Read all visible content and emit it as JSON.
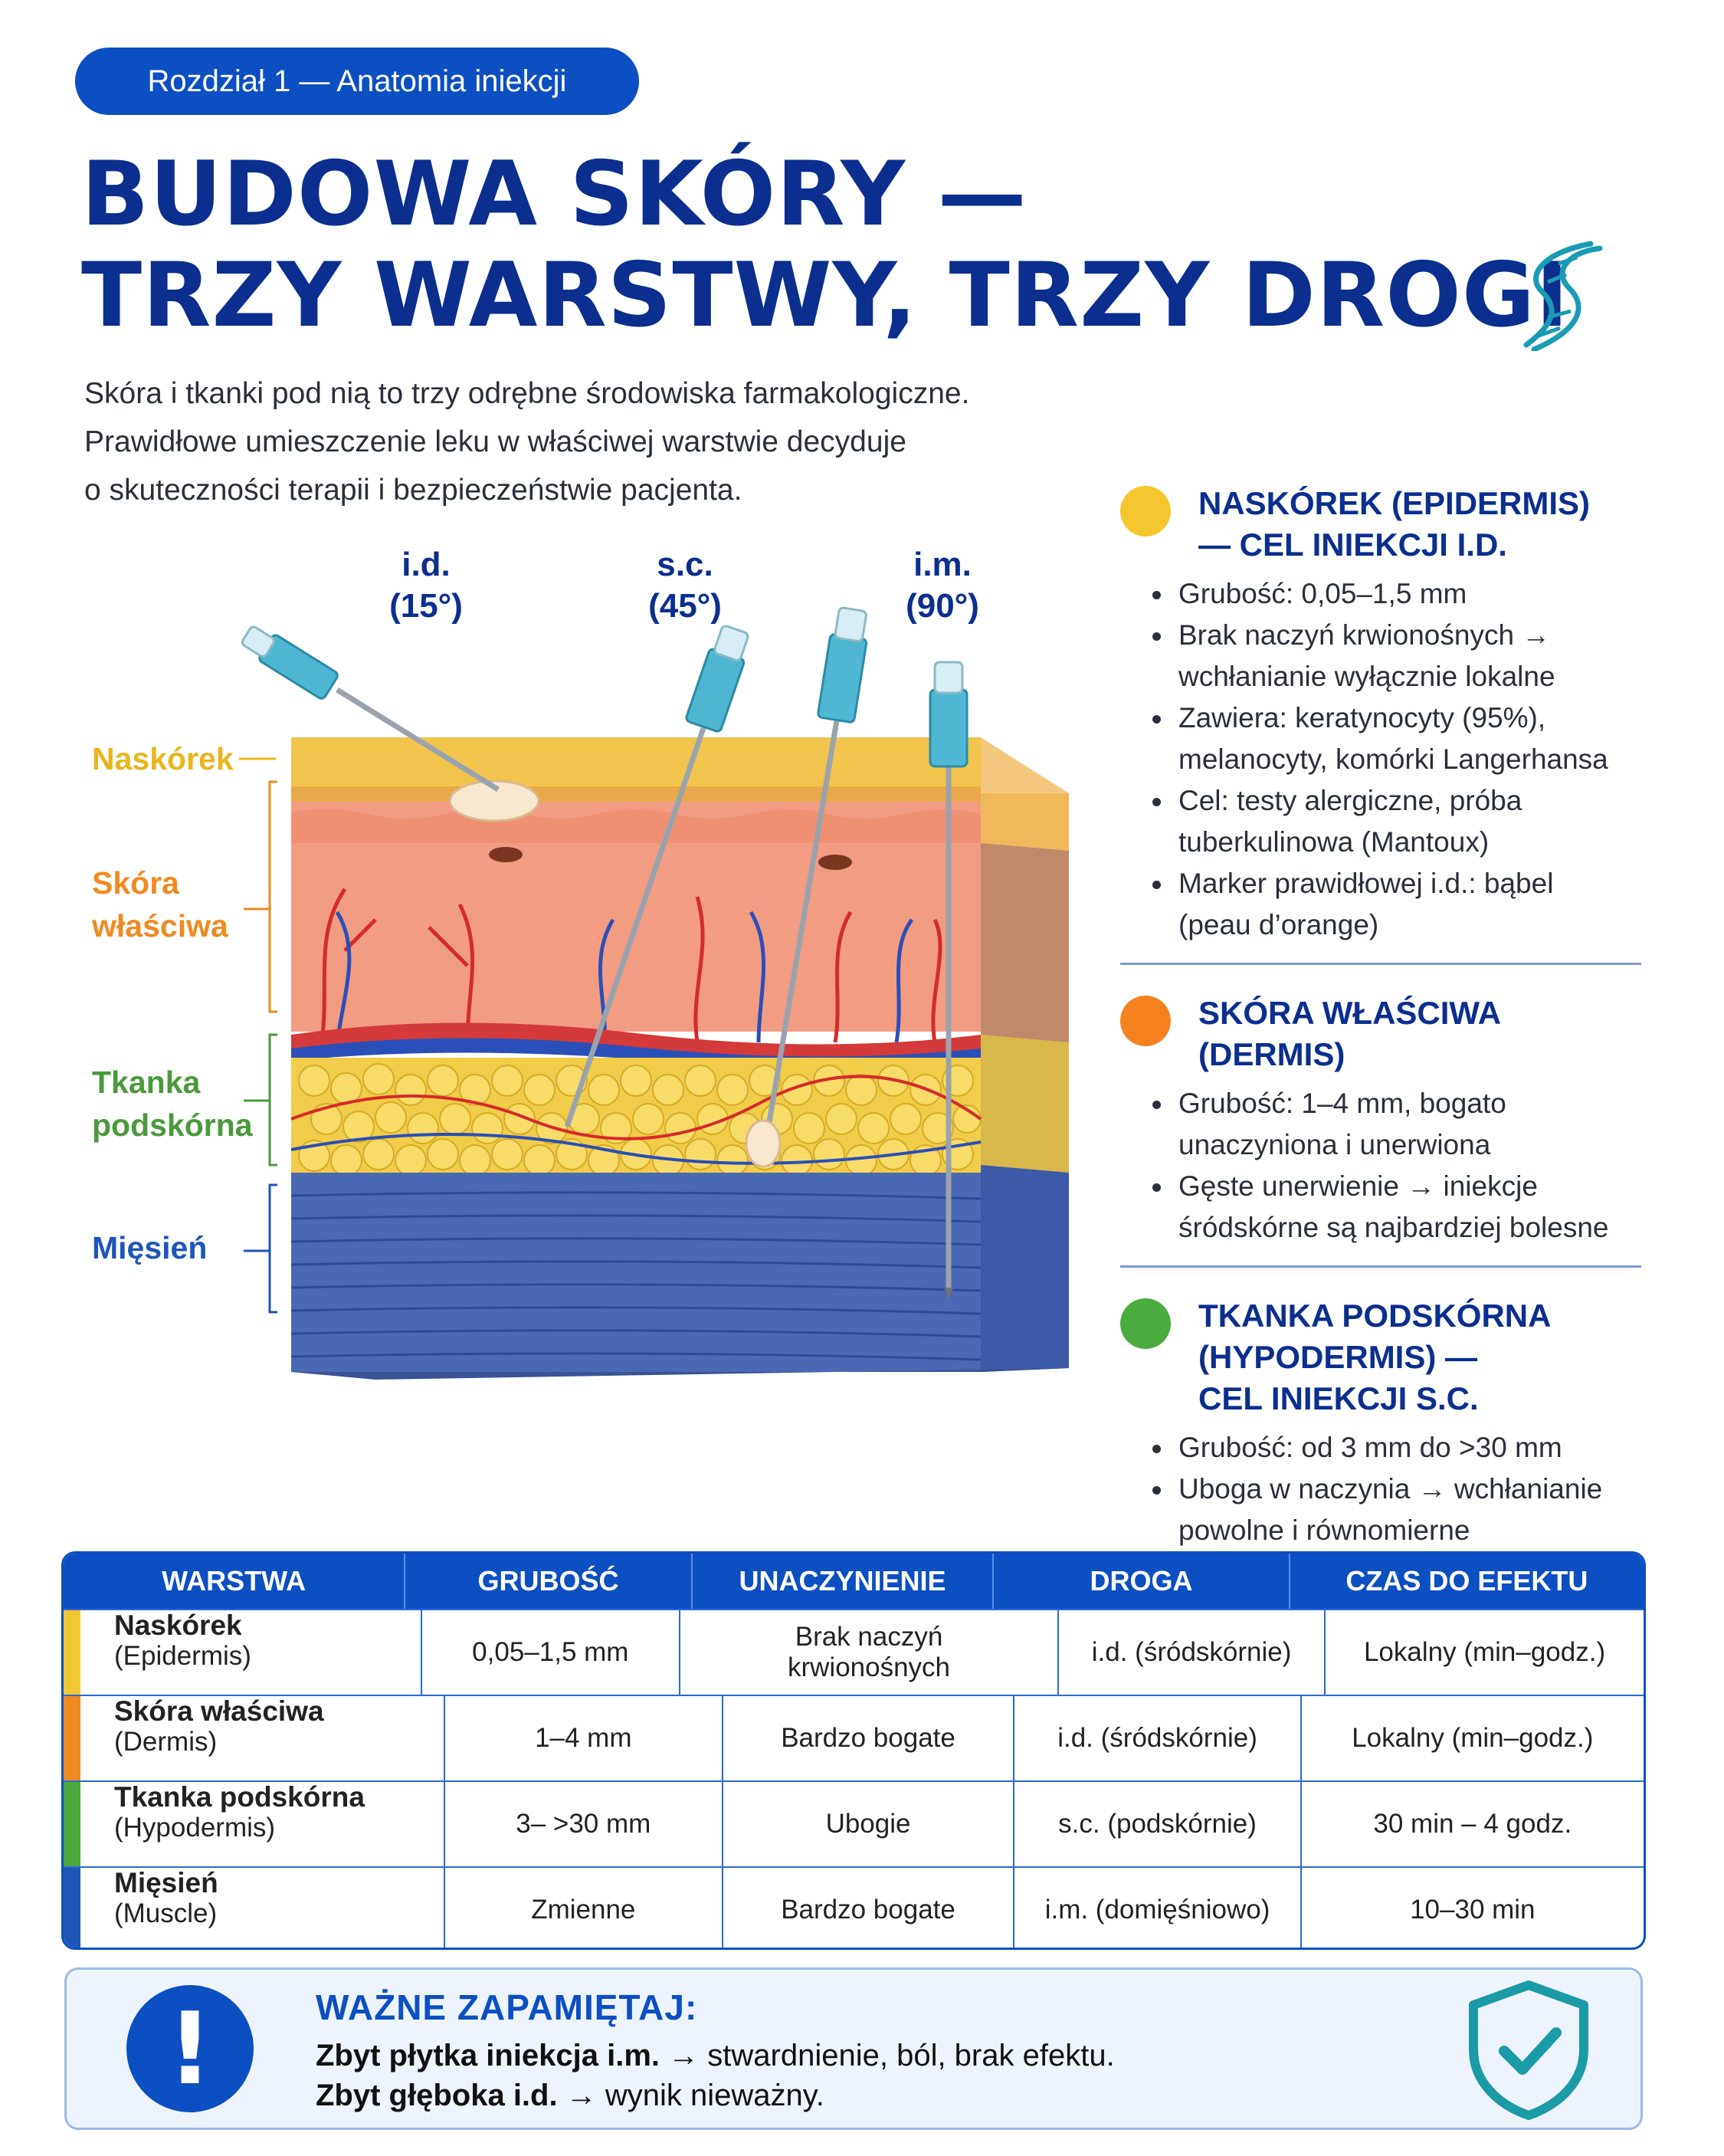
{
  "chapter": "Rozdział 1 — Anatomia iniekcji",
  "title": {
    "line1": "BUDOWA SKÓRY —",
    "line2": "TRZY WARSTWY, TRZY DROGI"
  },
  "intro": [
    "Skóra i tkanki pod nią to trzy odrębne środowiska farmakologiczne.",
    "Prawidłowe umieszczenie leku w właściwej warstwie decyduje",
    "o skuteczności terapii i bezpieczeństwie pacjenta."
  ],
  "needles": [
    {
      "route": "i.d.",
      "angle": "(15°)"
    },
    {
      "route": "s.c.",
      "angle": "(45°)"
    },
    {
      "route": "i.m.",
      "angle": "(90°)"
    }
  ],
  "layer_labels": {
    "epidermis": "Naskórek",
    "dermis": [
      "Skóra",
      "właściwa"
    ],
    "hypodermis": [
      "Tkanka",
      "podskórna"
    ],
    "muscle": "Mięsień"
  },
  "colors": {
    "brand": "#0c4fc2",
    "title": "#0b2f8e",
    "epidermis": "#f2c734",
    "dermis": "#f28a24",
    "hypodermis": "#4aa83e",
    "muscle": "#1e56b8"
  },
  "info": [
    {
      "dot_color": "#f5c62e",
      "heading": [
        "NASKÓREK (EPIDERMIS)",
        "— CEL INIEKCJI I.D."
      ],
      "bullets": [
        [
          "Grubość: 0,05–1,5 mm"
        ],
        [
          "Brak naczyń krwionośnych →",
          "wchłanianie wyłącznie lokalne"
        ],
        [
          "Zawiera: keratynocyty (95%),",
          "melanocyty, komórki Langerhansa"
        ],
        [
          "Cel: testy alergiczne, próba",
          "tuberkulinowa (Mantoux)"
        ],
        [
          "Marker prawidłowej i.d.: bąbel",
          "(peau d’orange)"
        ]
      ]
    },
    {
      "dot_color": "#f5821f",
      "heading": [
        "SKÓRA WŁAŚCIWA (DERMIS)"
      ],
      "bullets": [
        [
          "Grubość: 1–4 mm, bogato",
          "unaczyniona i unerwiona"
        ],
        [
          "Gęste unerwienie → iniekcje",
          "śródskórne są najbardziej bolesne"
        ]
      ]
    },
    {
      "dot_color": "#4aab3f",
      "heading": [
        "TKANKA PODSKÓRNA",
        "(HYPODERMIS) —",
        "CEL INIEKCJI S.C."
      ],
      "bullets": [
        [
          "Grubość: od 3 mm do >30 mm"
        ],
        [
          "Uboga w naczynia → wchłanianie",
          "powolne i równomierne"
        ]
      ]
    }
  ],
  "table": {
    "headers": [
      "WARSTWA",
      "GRUBOŚĆ",
      "UNACZYNIENIE",
      "DROGA",
      "CZAS DO EFEKTU"
    ],
    "rows": [
      {
        "name": "Naskórek",
        "latin": "(Epidermis)",
        "stripe": "#f2c734",
        "thickness": "0,05–1,5 mm",
        "vasc": "Brak naczyń krwionośnych",
        "route": "i.d. (śródskórnie)",
        "time": "Lokalny (min–godz.)"
      },
      {
        "name": "Skóra właściwa",
        "latin": "(Dermis)",
        "stripe": "#f28a24",
        "thickness": "1–4 mm",
        "vasc": "Bardzo bogate",
        "route": "i.d. (śródskórnie)",
        "time": "Lokalny (min–godz.)"
      },
      {
        "name": "Tkanka podskórna",
        "latin": "(Hypodermis)",
        "stripe": "#4aa83e",
        "thickness": "3– >30 mm",
        "vasc": "Ubogie",
        "route": "s.c. (podskórnie)",
        "time": "30 min – 4 godz."
      },
      {
        "name": "Mięsień",
        "latin": "(Muscle)",
        "stripe": "#1e56b8",
        "thickness": "Zmienne",
        "vasc": "Bardzo bogate",
        "route": "i.m. (domięśniowo)",
        "time": "10–30 min"
      }
    ]
  },
  "callout": {
    "heading": "WAŻNE ZAPAMIĘTAJ:",
    "line1_bold": "Zbyt płytka iniekcja i.m.",
    "line1_rest": " → stwardnienie, ból, brak efektu.",
    "line2_bold": "Zbyt głęboka i.d.",
    "line2_rest": " → wynik nieważny."
  }
}
